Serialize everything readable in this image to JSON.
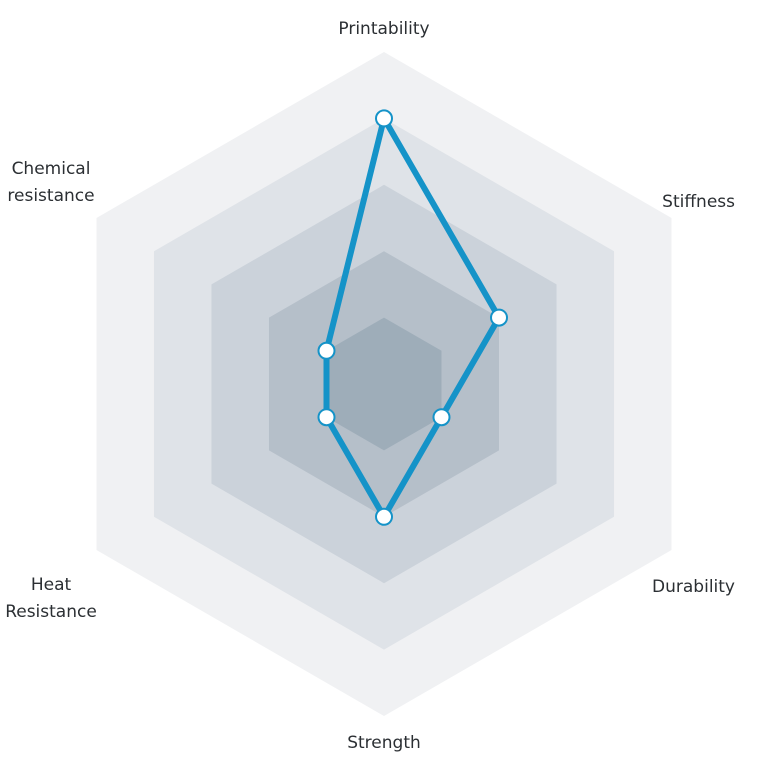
{
  "chart_data": {
    "type": "radar",
    "axes": [
      "Printability",
      "Stiffness",
      "Durability",
      "Strength",
      "Heat Resistance",
      "Chemical resistance"
    ],
    "axis_label_lines": [
      [
        "Printability"
      ],
      [
        "Stiffness"
      ],
      [
        "Durability"
      ],
      [
        "Strength"
      ],
      [
        "Heat",
        "Resistance"
      ],
      [
        "Chemical",
        "resistance"
      ]
    ],
    "levels": 5,
    "range": [
      0,
      5
    ],
    "series": [
      {
        "values": [
          4,
          2,
          1,
          2,
          1,
          1
        ]
      }
    ],
    "grid": true,
    "legend": "none",
    "colors": {
      "series": "#1593c8",
      "marker_fill": "#ffffff",
      "bands": [
        "#f0f1f3",
        "#dfe3e8",
        "#cbd2da",
        "#b5bfc9",
        "#9eadb9"
      ],
      "label": "#2b2f33"
    }
  }
}
